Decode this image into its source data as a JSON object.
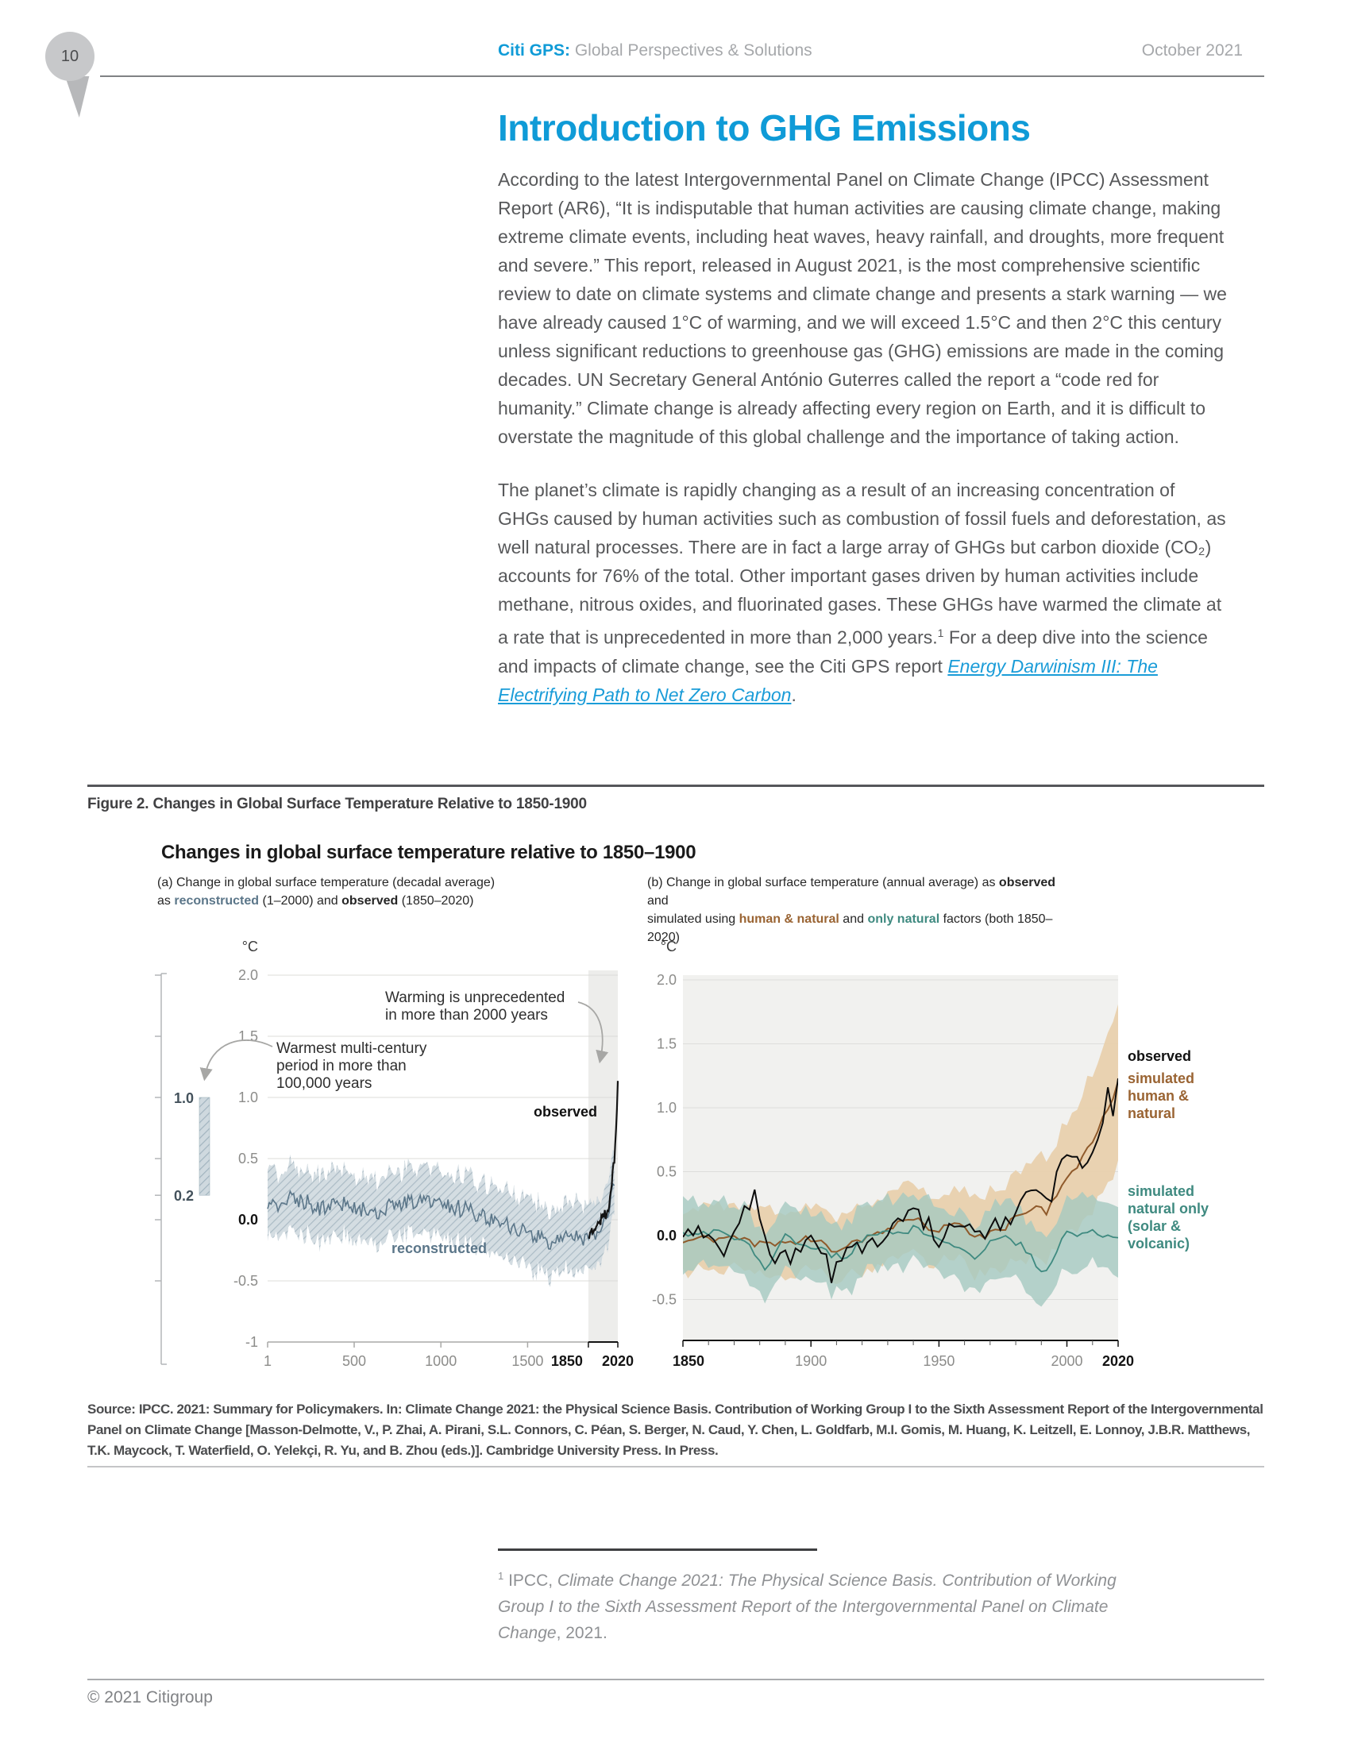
{
  "header": {
    "page_number": "10",
    "brand": "Citi GPS:",
    "brand_suffix": " Global Perspectives & Solutions",
    "date": "October 2021"
  },
  "article": {
    "title": "Introduction to GHG Emissions",
    "paragraph1": "According to the latest Intergovernmental Panel on Climate Change (IPCC) Assessment Report (AR6), “It is indisputable that human activities are causing climate change, making extreme climate events, including heat waves, heavy rainfall, and droughts, more frequent and severe.” This report, released in August 2021, is the most comprehensive scientific review to date on climate systems and climate change and presents a stark warning — we have already caused 1°C of warming, and we will exceed 1.5°C and then 2°C this century unless significant reductions to greenhouse gas (GHG) emissions are made in the coming decades. UN Secretary General António Guterres called the report a “code red for humanity.” Climate change is already affecting every region on Earth, and it is difficult to overstate the magnitude of this global challenge and the importance of taking action.",
    "p2_before_sup": "The planet’s climate is rapidly changing as a result of an increasing concentration of GHGs caused by human activities such as combustion of fossil fuels and deforestation, as well natural processes. There are in fact a large array of GHGs but carbon dioxide (CO₂) accounts for 76% of the total. Other important gases driven by human activities include methane, nitrous oxides, and fluorinated gases. These GHGs have warmed the climate at a rate that is unprecedented in more than 2,000 years.",
    "p2_sup": "1",
    "p2_mid": " For a deep dive into the science and impacts of climate change, see the Citi GPS report ",
    "p2_link": "Energy Darwinism III: The Electrifying Path to Net Zero Carbon",
    "p2_after": "."
  },
  "figure": {
    "caption": "Figure 2. Changes in Global Surface Temperature Relative to 1850-1900",
    "chart_title": "Changes in global surface temperature relative to 1850–1900",
    "subtitle_a": {
      "line1": "(a) Change in global surface temperature (decadal average)",
      "line2_pre": "as ",
      "reconstructed": "reconstructed",
      "line2_mid": " (1–2000) and ",
      "observed": "observed",
      "line2_post": " (1850–2020)"
    },
    "subtitle_b": {
      "line1_pre": "(b) Change in global surface temperature (annual average) as ",
      "observed": "observed",
      "line1_post": " and",
      "line2_pre": "simulated using ",
      "human_natural": "human & natural",
      "line2_mid": " and ",
      "only_natural": "only natural",
      "line2_post": " factors (both 1850–2020)"
    },
    "source": "Source: IPCC. 2021: Summary for Policymakers. In: Climate Change 2021: the Physical Science Basis. Contribution of Working Group I to the Sixth Assessment Report of the Intergovernmental Panel on Climate Change [Masson-Delmotte, V., P. Zhai, A. Pirani, S.L. Connors, C. Péan, S. Berger, N. Caud, Y. Chen, L. Goldfarb, M.I. Gomis, M. Huang, K. Leitzell, E. Lonnoy, J.B.R. Matthews, T.K. Maycock, T. Waterfield, O. Yelekçi, R. Yu, and B. Zhou (eds.)]. Cambridge University Press. In Press."
  },
  "footnote": {
    "marker": "1",
    "pre": " IPCC, ",
    "italic": "Climate Change 2021: The Physical Science Basis. Contribution of Working Group I to the Sixth Assessment Report of the Intergovernmental Panel on Climate Change",
    "post": ", 2021."
  },
  "footer": {
    "copyright": "© 2021 Citigroup"
  },
  "colors": {
    "brand_blue": "#0f9bd7",
    "body_text": "#57585a",
    "reconstructed": "#5b7689",
    "human_natural": "#9a6433",
    "natural_only": "#3f8a80",
    "observed": "#141414"
  },
  "chart_data": [
    {
      "id": "panel-a",
      "type": "line",
      "title": "(a) Change in global surface temperature (decadal average) as reconstructed (1–2000) and observed (1850–2020)",
      "unit": "°C",
      "xlim": [
        1,
        2020
      ],
      "ylim": [
        -1,
        2
      ],
      "grid": true,
      "y_ticks": [
        "2.0",
        "1.5",
        "1.0",
        "0.5",
        "0.0",
        "-0.5",
        "-1"
      ],
      "x_ticks": [
        {
          "v": 1,
          "label": "1"
        },
        {
          "v": 500,
          "label": "500"
        },
        {
          "v": 1000,
          "label": "1000"
        },
        {
          "v": 1500,
          "label": "1500"
        },
        {
          "v": 1850,
          "label": "1850",
          "bold": true
        },
        {
          "v": 2020,
          "label": "2020",
          "bold": true
        }
      ],
      "shaded_period": [
        1850,
        2020
      ],
      "side_bar": {
        "labels": [
          "1.0",
          "0.2"
        ],
        "values": [
          1.0,
          0.2
        ]
      },
      "annotations": [
        [
          "Warming is unprecedented",
          "in more than 2000 years"
        ],
        [
          "Warmest multi-century",
          "period in more than",
          "100,000 years"
        ]
      ],
      "labels": {
        "observed": "observed",
        "reconstructed": "reconstructed"
      },
      "series": [
        {
          "name": "reconstructed",
          "color": "#5b7689",
          "range": [
            1,
            2000
          ],
          "step": 10,
          "noise": 0.07,
          "seed": 3,
          "band_halfwidth": 0.27,
          "anchors": [
            [
              1,
              0.1
            ],
            [
              150,
              0.18
            ],
            [
              300,
              0.1
            ],
            [
              450,
              0.14
            ],
            [
              600,
              0.06
            ],
            [
              750,
              0.12
            ],
            [
              900,
              0.17
            ],
            [
              1000,
              0.12
            ],
            [
              1150,
              0.08
            ],
            [
              1300,
              0.0
            ],
            [
              1450,
              -0.07
            ],
            [
              1600,
              -0.18
            ],
            [
              1750,
              -0.15
            ],
            [
              1850,
              -0.18
            ],
            [
              1900,
              -0.08
            ],
            [
              1950,
              0.0
            ],
            [
              2000,
              0.28
            ]
          ]
        },
        {
          "name": "observed",
          "color": "#141414",
          "range": [
            1850,
            2020
          ],
          "step": 5,
          "noise": 0.045,
          "seed": 7,
          "anchors": [
            [
              1850,
              -0.16
            ],
            [
              1875,
              -0.1
            ],
            [
              1900,
              -0.06
            ],
            [
              1925,
              0.0
            ],
            [
              1950,
              0.05
            ],
            [
              1965,
              0.08
            ],
            [
              1980,
              0.25
            ],
            [
              2000,
              0.5
            ],
            [
              2010,
              0.78
            ],
            [
              2020,
              1.1
            ]
          ]
        }
      ]
    },
    {
      "id": "panel-b",
      "type": "line",
      "title": "(b) Change in global surface temperature (annual average) as observed and simulated using human & natural and only natural factors (both 1850–2020)",
      "unit": "°C",
      "xlim": [
        1850,
        2020
      ],
      "ylim": [
        -0.8,
        2.05
      ],
      "grid": true,
      "y_ticks": [
        "2.0",
        "1.5",
        "1.0",
        "0.5",
        "0.0",
        "-0.5"
      ],
      "x_ticks": [
        {
          "v": 1850,
          "label": "1850",
          "bold": true
        },
        {
          "v": 1900,
          "label": "1900"
        },
        {
          "v": 1950,
          "label": "1950"
        },
        {
          "v": 2000,
          "label": "2000"
        },
        {
          "v": 2020,
          "label": "2020",
          "bold": true
        }
      ],
      "side_labels": {
        "observed": "observed",
        "human_natural": [
          "simulated",
          "human &",
          "natural"
        ],
        "natural_only": [
          "simulated",
          "natural only",
          "(solar &",
          "volcanic)"
        ]
      },
      "series": [
        {
          "name": "simulated human & natural",
          "line_color": "#8f5a2b",
          "band_color": "#e8d0ad",
          "range": [
            1850,
            2020
          ],
          "step": 2,
          "noise": 0.035,
          "seed": 11,
          "band_noise": 0.05,
          "anchors": [
            [
              1850,
              -0.03
            ],
            [
              1870,
              -0.02
            ],
            [
              1885,
              -0.08
            ],
            [
              1900,
              -0.03
            ],
            [
              1910,
              -0.12
            ],
            [
              1925,
              0.02
            ],
            [
              1940,
              0.12
            ],
            [
              1950,
              0.05
            ],
            [
              1960,
              0.1
            ],
            [
              1964,
              -0.03
            ],
            [
              1975,
              0.05
            ],
            [
              1985,
              0.22
            ],
            [
              1992,
              0.18
            ],
            [
              2000,
              0.45
            ],
            [
              2010,
              0.72
            ],
            [
              2020,
              1.18
            ]
          ],
          "band_halfwidth_anchors": [
            [
              1850,
              0.25
            ],
            [
              1900,
              0.25
            ],
            [
              1950,
              0.27
            ],
            [
              1980,
              0.33
            ],
            [
              2000,
              0.45
            ],
            [
              2020,
              0.62
            ]
          ]
        },
        {
          "name": "simulated natural only (solar & volcanic)",
          "line_color": "#3f8a80",
          "band_color": "#a5c9c1",
          "range": [
            1850,
            2020
          ],
          "step": 2,
          "noise": 0.03,
          "seed": 5,
          "band_noise": 0.06,
          "anchors": [
            [
              1850,
              0.0
            ],
            [
              1860,
              0.03
            ],
            [
              1875,
              -0.03
            ],
            [
              1883,
              -0.28
            ],
            [
              1890,
              0.0
            ],
            [
              1902,
              -0.1
            ],
            [
              1912,
              -0.18
            ],
            [
              1925,
              0.02
            ],
            [
              1940,
              0.05
            ],
            [
              1950,
              0.0
            ],
            [
              1963,
              -0.18
            ],
            [
              1975,
              0.02
            ],
            [
              1982,
              -0.08
            ],
            [
              1991,
              -0.28
            ],
            [
              2000,
              0.02
            ],
            [
              2010,
              0.03
            ],
            [
              2020,
              0.0
            ]
          ]
        },
        {
          "name": "observed",
          "line_color": "#0c0c0c",
          "range": [
            1850,
            2020
          ],
          "step": 2,
          "noise": 0.085,
          "seed": 19,
          "anchors": [
            [
              1850,
              -0.05
            ],
            [
              1858,
              0.05
            ],
            [
              1865,
              -0.12
            ],
            [
              1878,
              0.3
            ],
            [
              1885,
              -0.25
            ],
            [
              1895,
              -0.15
            ],
            [
              1900,
              0.0
            ],
            [
              1908,
              -0.3
            ],
            [
              1915,
              -0.05
            ],
            [
              1920,
              -0.15
            ],
            [
              1930,
              0.0
            ],
            [
              1940,
              0.18
            ],
            [
              1945,
              0.1
            ],
            [
              1950,
              -0.05
            ],
            [
              1957,
              0.1
            ],
            [
              1965,
              -0.05
            ],
            [
              1972,
              0.05
            ],
            [
              1978,
              0.1
            ],
            [
              1982,
              0.25
            ],
            [
              1988,
              0.35
            ],
            [
              1993,
              0.25
            ],
            [
              1998,
              0.55
            ],
            [
              2003,
              0.6
            ],
            [
              2008,
              0.6
            ],
            [
              2012,
              0.75
            ],
            [
              2016,
              1.1
            ],
            [
              2018,
              1.0
            ],
            [
              2020,
              1.25
            ]
          ]
        }
      ]
    }
  ]
}
